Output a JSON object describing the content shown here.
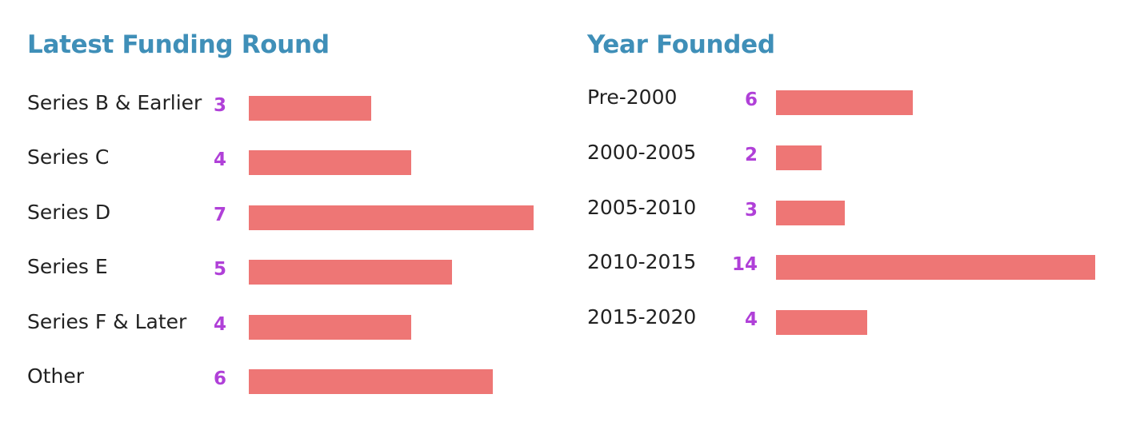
{
  "colors": {
    "title": "#3f8fb8",
    "bar": "#ee7675",
    "value": "#b040d8",
    "label": "#222222"
  },
  "chart_data": [
    {
      "type": "bar",
      "orientation": "horizontal",
      "title": "Latest Funding Round",
      "categories": [
        "Series B & Earlier",
        "Series C",
        "Series D",
        "Series E",
        "Series F & Later",
        "Other"
      ],
      "values": [
        3,
        4,
        7,
        5,
        4,
        6
      ],
      "data_labels": [
        "3",
        "4",
        "7",
        "5",
        "4",
        "6"
      ],
      "xlim": [
        0,
        7
      ],
      "grid": false,
      "legend": "none"
    },
    {
      "type": "bar",
      "orientation": "horizontal",
      "title": "Year Founded",
      "categories": [
        "Pre-2000",
        "2000-2005",
        "2005-2010",
        "2010-2015",
        "2015-2020"
      ],
      "values": [
        6,
        2,
        3,
        14,
        4
      ],
      "data_labels": [
        "6",
        "2",
        "3",
        "14",
        "4"
      ],
      "xlim": [
        0,
        14
      ],
      "grid": false,
      "legend": "none"
    }
  ]
}
